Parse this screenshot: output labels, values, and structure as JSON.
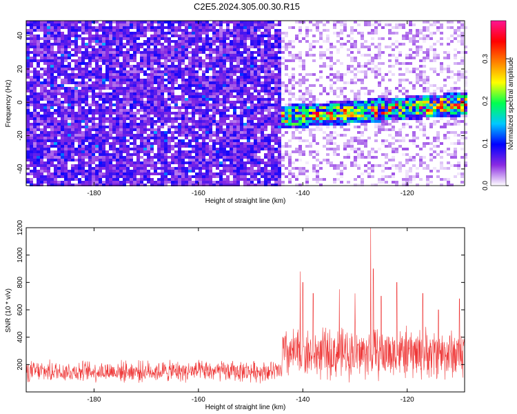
{
  "figure": {
    "title": "C2E5.2024.305.00.30.R15"
  },
  "chart_data": [
    {
      "type": "heatmap",
      "xlabel": "Height of straight line (km)",
      "ylabel": "Frequency (Hz)",
      "xlim": [
        -193,
        -109
      ],
      "ylim": [
        -50,
        49
      ],
      "x_ticks": [
        -180,
        -160,
        -140,
        -120
      ],
      "y_ticks": [
        -40,
        -20,
        0,
        20,
        40
      ],
      "colorbar": {
        "label": "Normalized spectral amplitude",
        "range": [
          0,
          0.39
        ],
        "ticks": [
          0.0,
          0.1,
          0.2,
          0.3
        ],
        "tick_labels": [
          "0.0",
          "0.1",
          "0.2",
          "0.3"
        ],
        "colors": [
          "#ffffff",
          "#8a2be2",
          "#0000ff",
          "#00c8ff",
          "#00ff50",
          "#ffff00",
          "#ff7f00",
          "#ff0000",
          "#ff1493"
        ]
      },
      "band": {
        "x_start": -144,
        "x_end": -109,
        "freq_center_start": -9,
        "freq_center_end": -1,
        "halfwidth_hz": 7,
        "peak_amplitude": 0.36
      }
    },
    {
      "type": "line",
      "xlabel": "Height of straight line (km)",
      "ylabel": "SNR (10 * v/v)",
      "xlim": [
        -193,
        -109
      ],
      "ylim": [
        0,
        1200
      ],
      "x_ticks": [
        -180,
        -160,
        -140,
        -120
      ],
      "y_ticks": [
        200,
        400,
        600,
        800,
        1000,
        1200
      ],
      "color": "#ee3333",
      "segments": [
        {
          "x_start": -193,
          "x_end": -144,
          "mean": 150,
          "spread": 90
        },
        {
          "x_start": -144,
          "x_end": -109,
          "mean": 280,
          "spread": 220
        }
      ],
      "peaks": [
        {
          "x": -140.5,
          "y": 880
        },
        {
          "x": -140,
          "y": 800
        },
        {
          "x": -138,
          "y": 720
        },
        {
          "x": -133,
          "y": 750
        },
        {
          "x": -130,
          "y": 720
        },
        {
          "x": -127,
          "y": 1200
        },
        {
          "x": -126.5,
          "y": 900
        },
        {
          "x": -125,
          "y": 700
        },
        {
          "x": -122,
          "y": 800
        },
        {
          "x": -117,
          "y": 720
        },
        {
          "x": -114,
          "y": 600
        },
        {
          "x": -110,
          "y": 680
        }
      ]
    }
  ]
}
